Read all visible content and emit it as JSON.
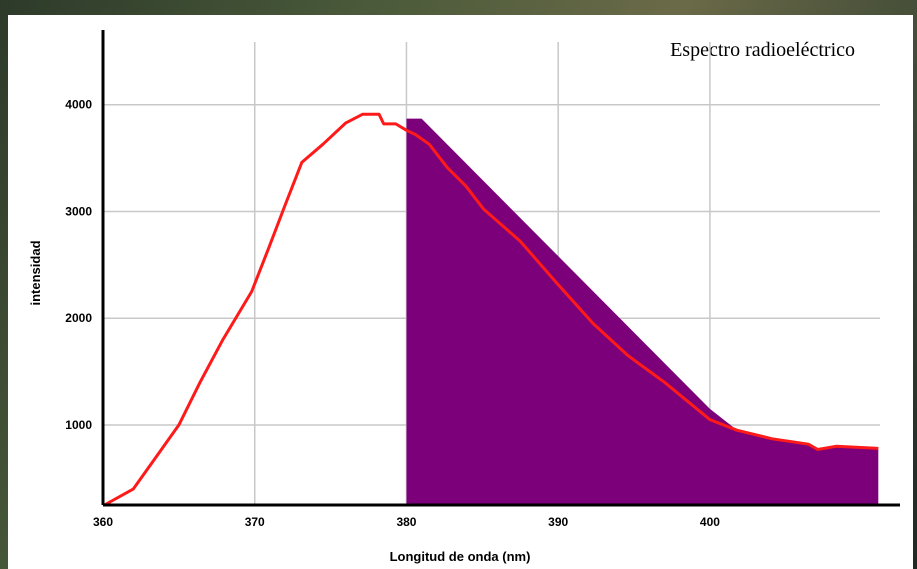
{
  "chart_data": {
    "type": "line",
    "title": "Espectro radioeléctrico",
    "x_label": "Longitud de onda (nm)",
    "y_label": "intensidad",
    "xlim": [
      360,
      412
    ],
    "ylim": [
      250,
      4700
    ],
    "xticks": [
      360,
      370,
      380,
      390,
      400
    ],
    "yticks": [
      1000,
      2000,
      3000,
      4000
    ],
    "grid": true,
    "series": [
      {
        "type": "area",
        "color": "#7b0079",
        "x": [
          380,
          381,
          400,
          401.8,
          404.1,
          406.5,
          407.1,
          408.3,
          411.1
        ],
        "values": [
          3870,
          3870,
          1150,
          950,
          870,
          820,
          770,
          800,
          780
        ]
      },
      {
        "type": "line",
        "color": "#ff1a1a",
        "x": [
          360.1,
          362,
          363.5,
          365,
          366.4,
          367.9,
          369.8,
          370.9,
          372,
          373.1,
          374.5,
          376,
          377.1,
          378.2,
          378.5,
          379.3,
          380,
          380.6,
          381.5,
          382.7,
          383.9,
          385.1,
          387.5,
          389.9,
          392.3,
          394.6,
          397,
          400,
          401.8,
          404.1,
          406.5,
          407.1,
          408.3,
          411.1
        ],
        "values": [
          250,
          400,
          700,
          1000,
          1400,
          1800,
          2250,
          2650,
          3060,
          3460,
          3630,
          3830,
          3910,
          3910,
          3820,
          3820,
          3760,
          3720,
          3630,
          3410,
          3240,
          3020,
          2720,
          2330,
          1950,
          1650,
          1400,
          1050,
          950,
          870,
          820,
          770,
          800,
          780
        ]
      }
    ]
  }
}
